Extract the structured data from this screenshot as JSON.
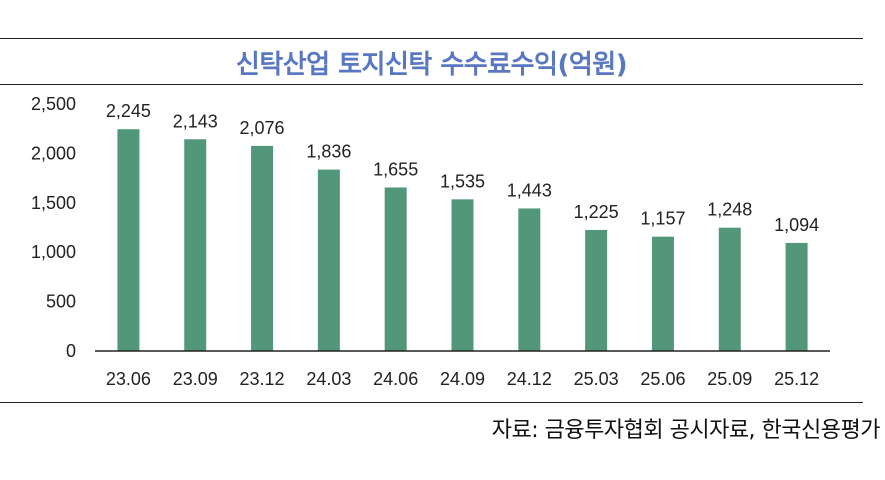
{
  "chart_title": "신탁산업 토지신탁 수수료수익(억원)",
  "source_note": "자료: 금융투자협회 공시자료, 한국신용평가",
  "colors": {
    "bar": "#52977a",
    "title": "#5a78c2"
  },
  "chart_data": {
    "type": "bar",
    "title": "신탁산업 토지신탁 수수료수익(억원)",
    "categories": [
      "23.06",
      "23.09",
      "23.12",
      "24.03",
      "24.06",
      "24.09",
      "24.12",
      "25.03",
      "25.06",
      "25.09",
      "25.12"
    ],
    "values": [
      2245,
      2143,
      2076,
      1836,
      1655,
      1535,
      1443,
      1225,
      1157,
      1248,
      1094
    ],
    "data_labels": [
      "2,245",
      "2,143",
      "2,076",
      "1,836",
      "1,655",
      "1,535",
      "1,443",
      "1,225",
      "1,157",
      "1,248",
      "1,094"
    ],
    "yticks": [
      0,
      500,
      1000,
      1500,
      2000,
      2500
    ],
    "ytick_labels": [
      "0",
      "500",
      "1,000",
      "1,500",
      "2,000",
      "2,500"
    ],
    "ylim": [
      0,
      2500
    ],
    "xlabel": "",
    "ylabel": "",
    "grid": false,
    "legend": "none"
  }
}
